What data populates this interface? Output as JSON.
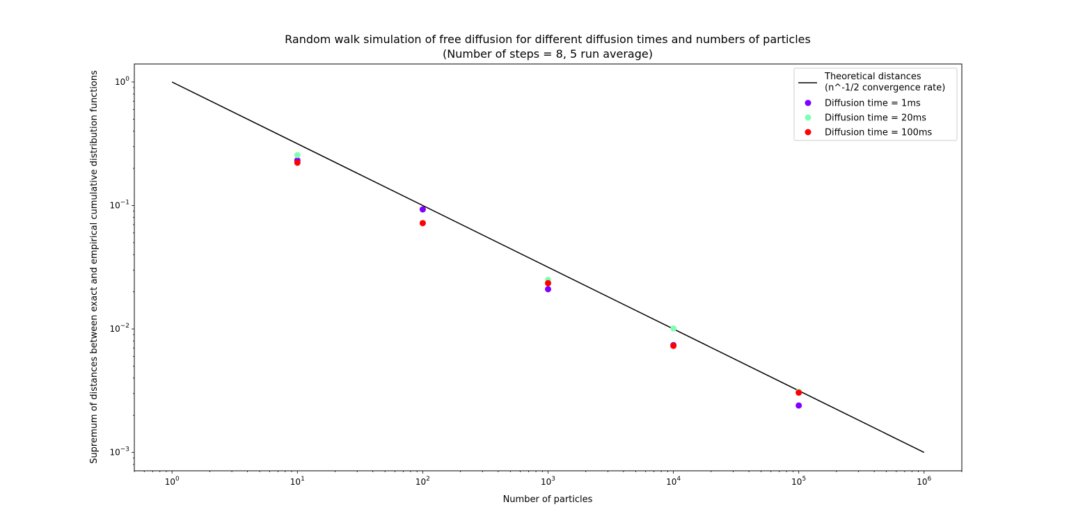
{
  "chart_data": {
    "type": "scatter",
    "title": "Random walk simulation of free diffusion for different diffusion times and numbers of particles",
    "subtitle": "(Number of steps = 8, 5 run average)",
    "xlabel": "Number of particles",
    "ylabel": "Supremum of distances between exact and empirical cumulative distribution functions",
    "xscale": "log",
    "yscale": "log",
    "xlim": [
      0.5,
      2000000
    ],
    "ylim": [
      0.00071,
      1.4
    ],
    "grid": false,
    "legend_position": "top-right",
    "x_ticks": [
      {
        "value": 1,
        "base": "10",
        "exp": "0"
      },
      {
        "value": 10,
        "base": "10",
        "exp": "1"
      },
      {
        "value": 100,
        "base": "10",
        "exp": "2"
      },
      {
        "value": 1000,
        "base": "10",
        "exp": "3"
      },
      {
        "value": 10000,
        "base": "10",
        "exp": "4"
      },
      {
        "value": 100000,
        "base": "10",
        "exp": "5"
      },
      {
        "value": 1000000,
        "base": "10",
        "exp": "6"
      }
    ],
    "y_ticks": [
      {
        "value": 0.001,
        "base": "10",
        "exp": "−3"
      },
      {
        "value": 0.01,
        "base": "10",
        "exp": "−2"
      },
      {
        "value": 0.1,
        "base": "10",
        "exp": "−1"
      },
      {
        "value": 1,
        "base": "10",
        "exp": "0"
      }
    ],
    "line": {
      "name": "Theoretical distances",
      "name_line2": "(n^-1/2 convergence rate)",
      "color": "#000000",
      "x": [
        1,
        1000000
      ],
      "y": [
        1,
        0.001
      ]
    },
    "series": [
      {
        "name": "Diffusion time = 1ms",
        "color": "#8000ff",
        "x": [
          10,
          100,
          1000,
          10000,
          100000
        ],
        "y": [
          0.232,
          0.093,
          0.021,
          0.0074,
          0.0024
        ]
      },
      {
        "name": "Diffusion time = 20ms",
        "color": "#80ffb4",
        "x": [
          10,
          100,
          1000,
          10000,
          100000
        ],
        "y": [
          0.256,
          0.072,
          0.025,
          0.0101,
          0.0031
        ]
      },
      {
        "name": "Diffusion time = 100ms",
        "color": "#ff0000",
        "x": [
          10,
          100,
          1000,
          10000,
          100000
        ],
        "y": [
          0.222,
          0.072,
          0.0235,
          0.0073,
          0.00305
        ]
      }
    ]
  }
}
